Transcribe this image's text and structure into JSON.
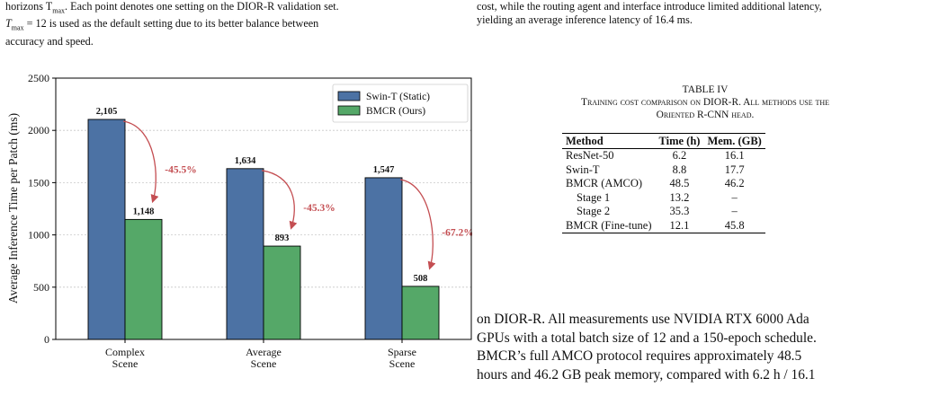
{
  "left_caption": {
    "line1": "horizons T",
    "line1_sub": "max",
    "line1_rest": ". Each point denotes one setting on the DIOR-R validation set.",
    "line2_a": "T",
    "line2_sub": "max",
    "line2_rest": " = 12 is used as the default setting due to its better balance between",
    "line3": "accuracy and speed."
  },
  "right_top": {
    "line1": "cost, while the routing agent and interface introduce limited additional latency,",
    "line2": "yielding an average inference latency of 16.4 ms."
  },
  "chart_data": {
    "type": "bar",
    "categories": [
      [
        "Complex",
        "Scene"
      ],
      [
        "Average",
        "Scene"
      ],
      [
        "Sparse",
        "Scene"
      ]
    ],
    "series": [
      {
        "name": "Swin-T (Static)",
        "color": "#4c72a4",
        "values": [
          2105,
          1634,
          1547
        ],
        "labels": [
          "2,105",
          "1,634",
          "1,547"
        ]
      },
      {
        "name": "BMCR (Ours)",
        "color": "#55a868",
        "values": [
          1148,
          893,
          508
        ],
        "labels": [
          "1,148",
          "893",
          "508"
        ]
      }
    ],
    "annotations": [
      "-45.5%",
      "-45.3%",
      "-67.2%"
    ],
    "annotation_color": "#c44e52",
    "ylabel": "Average Inference Time per Patch (ms)",
    "ylim": [
      0,
      2500
    ],
    "yticks": [
      0,
      500,
      1000,
      1500,
      2000,
      2500
    ],
    "legend_position": "top-right"
  },
  "table_caption": {
    "title": "TABLE IV",
    "line1": "Training cost comparison on DIOR-R. All methods use the",
    "line2": "Oriented R-CNN head."
  },
  "table": {
    "headers": [
      "Method",
      "Time (h)",
      "Mem. (GB)"
    ],
    "rows": [
      [
        "ResNet-50",
        "6.2",
        "16.1"
      ],
      [
        "Swin-T",
        "8.8",
        "17.7"
      ],
      [
        "BMCR (AMCO)",
        "48.5",
        "46.2"
      ],
      [
        "Stage 1",
        "13.2",
        "–"
      ],
      [
        "Stage 2",
        "35.3",
        "–"
      ],
      [
        "BMCR (Fine-tune)",
        "12.1",
        "45.8"
      ]
    ]
  },
  "body_text": {
    "line1": "on DIOR-R. All measurements use NVIDIA RTX 6000 Ada",
    "line2": "GPUs with a total batch size of 12 and a 150-epoch schedule.",
    "line3": "BMCR’s full AMCO protocol requires approximately 48.5",
    "line4": "hours and 46.2 GB peak memory, compared with 6.2 h / 16.1"
  }
}
